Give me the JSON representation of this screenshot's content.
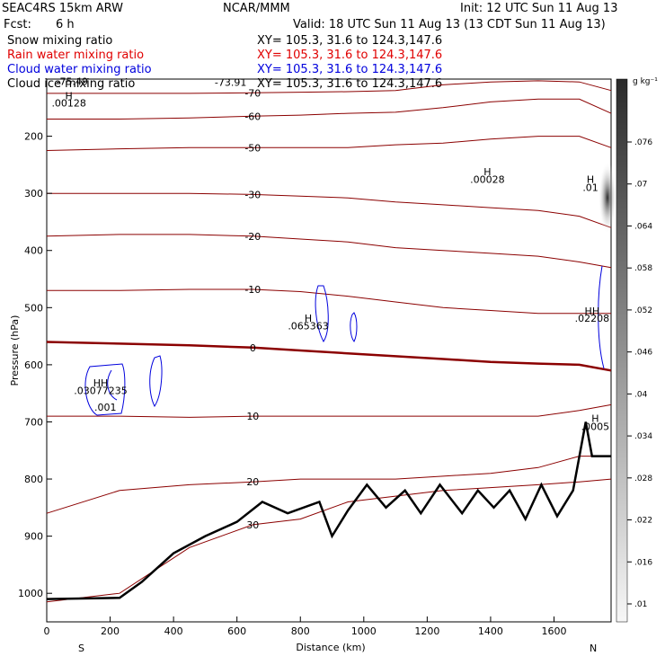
{
  "header": {
    "model": "SEAC4RS 15km ARW",
    "center": "NCAR/MMM",
    "init": "Init: 12 UTC Sun 11 Aug 13",
    "fcst_label": "Fcst:",
    "fcst_value": "6 h",
    "valid": "Valid: 18 UTC Sun 11 Aug 13 (13 CDT Sun 11 Aug 13)"
  },
  "fields": [
    {
      "name": "Snow mixing ratio",
      "xy": "XY= 105.3, 31.6 to 124.3,147.6",
      "color": "#000000"
    },
    {
      "name": "Rain water mixing ratio",
      "xy": "XY= 105.3, 31.6 to 124.3,147.6",
      "color": "#e00000"
    },
    {
      "name": "Cloud water mixing ratio",
      "xy": "XY= 105.3, 31.6 to 124.3,147.6",
      "color": "#0000dd"
    },
    {
      "name": "Cloud ice mixing ratio",
      "xy": "XY= 105.3, 31.6 to 124.3,147.6",
      "color": "#000000"
    }
  ],
  "chart_data": {
    "type": "cross-section",
    "xlabel": "Distance (km)",
    "ylabel": "Pressure (hPa)",
    "xlim": [
      0,
      1780
    ],
    "ylim": [
      1050,
      100
    ],
    "x_ticks": [
      0,
      200,
      400,
      600,
      800,
      1000,
      1200,
      1400,
      1600
    ],
    "y_ticks": [
      1000,
      900,
      800,
      700,
      600,
      500,
      400,
      300,
      200
    ],
    "endpoints": {
      "left": "S",
      "right": "N"
    },
    "colorbar": {
      "unit": "g kg⁻¹",
      "ticks": [
        ".076",
        ".07",
        ".064",
        ".058",
        ".052",
        ".046",
        ".04",
        ".034",
        ".028",
        ".022",
        ".016",
        ".01"
      ]
    },
    "temperature_isotherms": [
      {
        "label": "30",
        "pressure": [
          1015,
          1000,
          920,
          880,
          870,
          840,
          830,
          820,
          815,
          810,
          805,
          800
        ],
        "x": [
          0,
          230,
          450,
          650,
          800,
          950,
          1100,
          1250,
          1400,
          1550,
          1680,
          1780
        ]
      },
      {
        "label": "20",
        "pressure": [
          860,
          820,
          810,
          805,
          800,
          800,
          800,
          795,
          790,
          780,
          760,
          760
        ],
        "x": [
          0,
          230,
          450,
          650,
          800,
          950,
          1100,
          1250,
          1400,
          1550,
          1680,
          1780
        ]
      },
      {
        "label": "10",
        "pressure": [
          690,
          690,
          692,
          690,
          690,
          690,
          690,
          690,
          690,
          690,
          680,
          670
        ],
        "x": [
          0,
          230,
          450,
          650,
          800,
          950,
          1100,
          1250,
          1400,
          1550,
          1680,
          1780
        ]
      },
      {
        "label": "0",
        "pressure": [
          560,
          563,
          566,
          570,
          575,
          580,
          585,
          590,
          595,
          598,
          600,
          610
        ],
        "x": [
          0,
          230,
          450,
          650,
          800,
          950,
          1100,
          1250,
          1400,
          1550,
          1680,
          1780
        ]
      },
      {
        "label": "-10",
        "pressure": [
          470,
          470,
          468,
          468,
          472,
          480,
          490,
          500,
          505,
          510,
          510,
          510
        ],
        "x": [
          0,
          230,
          450,
          650,
          800,
          950,
          1100,
          1250,
          1400,
          1550,
          1680,
          1780
        ]
      },
      {
        "label": "-20",
        "pressure": [
          375,
          372,
          372,
          375,
          380,
          385,
          395,
          400,
          405,
          410,
          420,
          430
        ],
        "x": [
          0,
          230,
          450,
          650,
          800,
          950,
          1100,
          1250,
          1400,
          1550,
          1680,
          1780
        ]
      },
      {
        "label": "-30",
        "pressure": [
          300,
          300,
          300,
          302,
          305,
          308,
          315,
          320,
          325,
          330,
          340,
          360
        ],
        "x": [
          0,
          230,
          450,
          650,
          800,
          950,
          1100,
          1250,
          1400,
          1550,
          1680,
          1780
        ]
      },
      {
        "label": "-50",
        "pressure": [
          225,
          222,
          220,
          220,
          220,
          220,
          215,
          212,
          205,
          200,
          200,
          220
        ],
        "x": [
          0,
          230,
          450,
          650,
          800,
          950,
          1100,
          1250,
          1400,
          1550,
          1680,
          1780
        ]
      },
      {
        "label": "-60",
        "pressure": [
          170,
          170,
          168,
          165,
          163,
          160,
          158,
          150,
          140,
          135,
          135,
          160
        ],
        "x": [
          0,
          230,
          450,
          650,
          800,
          950,
          1100,
          1250,
          1400,
          1550,
          1680,
          1780
        ]
      },
      {
        "label": "-70",
        "pressure": [
          125,
          125,
          125,
          124,
          123,
          122,
          120,
          110,
          105,
          103,
          105,
          120
        ],
        "x": [
          0,
          230,
          450,
          650,
          800,
          950,
          1100,
          1250,
          1400,
          1550,
          1680,
          1780
        ]
      }
    ],
    "terrain": {
      "x": [
        0,
        230,
        300,
        400,
        500,
        600,
        680,
        760,
        860,
        900,
        950,
        1010,
        1070,
        1130,
        1180,
        1240,
        1310,
        1360,
        1410,
        1460,
        1510,
        1560,
        1610,
        1660,
        1700,
        1720,
        1780
      ],
      "pressure": [
        1010,
        1008,
        980,
        930,
        900,
        875,
        840,
        860,
        840,
        900,
        855,
        810,
        850,
        820,
        860,
        810,
        860,
        820,
        850,
        820,
        870,
        810,
        865,
        820,
        700,
        760,
        760
      ]
    },
    "annotations": [
      {
        "text": "-75.49",
        "x": 80,
        "p": 110,
        "color": "#8b0000"
      },
      {
        "text": "-73.91",
        "x": 580,
        "p": 112,
        "color": "#8b0000"
      },
      {
        "text": "H",
        "x": 70,
        "p": 135,
        "color": "#000000"
      },
      {
        "text": ".00128",
        "x": 70,
        "p": 148,
        "color": "#000000"
      },
      {
        "text": "H",
        "x": 1390,
        "p": 268,
        "color": "#000000"
      },
      {
        "text": ".00028",
        "x": 1390,
        "p": 282,
        "color": "#000000"
      },
      {
        "text": "H",
        "x": 1715,
        "p": 282,
        "color": "#000000"
      },
      {
        "text": ".01",
        "x": 1715,
        "p": 296,
        "color": "#000000"
      },
      {
        "text": "H",
        "x": 825,
        "p": 525,
        "color": "#0000dd"
      },
      {
        "text": ".065363",
        "x": 825,
        "p": 538,
        "color": "#0000dd"
      },
      {
        "text": "HH",
        "x": 170,
        "p": 638,
        "color": "#e00000"
      },
      {
        "text": ".03077235",
        "x": 170,
        "p": 651,
        "color": "#0000dd"
      },
      {
        "text": ".001",
        "x": 185,
        "p": 680,
        "color": "#0000dd"
      },
      {
        "text": "HH",
        "x": 1720,
        "p": 512,
        "color": "#e00000"
      },
      {
        "text": ".02208",
        "x": 1720,
        "p": 525,
        "color": "#0000dd"
      },
      {
        "text": "H",
        "x": 1730,
        "p": 700,
        "color": "#e00000"
      },
      {
        "text": ".0005",
        "x": 1730,
        "p": 714,
        "color": "#e00000"
      }
    ]
  }
}
